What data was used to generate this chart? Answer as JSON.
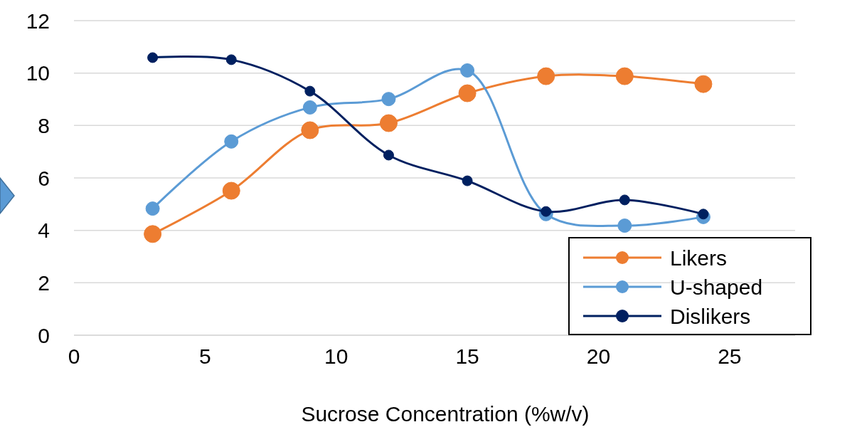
{
  "chart_data": {
    "type": "line",
    "xlabel": "Sucrose Concentration (%w/v)",
    "x": [
      3,
      6,
      9,
      12,
      15,
      18,
      21,
      24
    ],
    "xlim": [
      0,
      27.5
    ],
    "xticks": [
      0,
      5,
      10,
      15,
      20,
      25
    ],
    "ylim": [
      0,
      12
    ],
    "yticks": [
      0,
      2,
      4,
      6,
      8,
      10,
      12
    ],
    "grid": "y",
    "legend": "bottom right",
    "marker": "circle",
    "line_style": "solid",
    "series": [
      {
        "name": "Likers",
        "color": "#ed7d31",
        "values": [
          3.86,
          5.51,
          7.82,
          8.09,
          9.23,
          9.88,
          9.88,
          9.58
        ]
      },
      {
        "name": "U-shaped",
        "color": "#5b9bd5",
        "values": [
          4.83,
          7.39,
          8.69,
          9.01,
          10.1,
          4.62,
          4.18,
          4.51
        ]
      },
      {
        "name": "Dislikers",
        "color": "#002060",
        "values": [
          10.59,
          10.51,
          9.31,
          6.87,
          5.89,
          4.72,
          5.16,
          4.62
        ]
      }
    ]
  }
}
